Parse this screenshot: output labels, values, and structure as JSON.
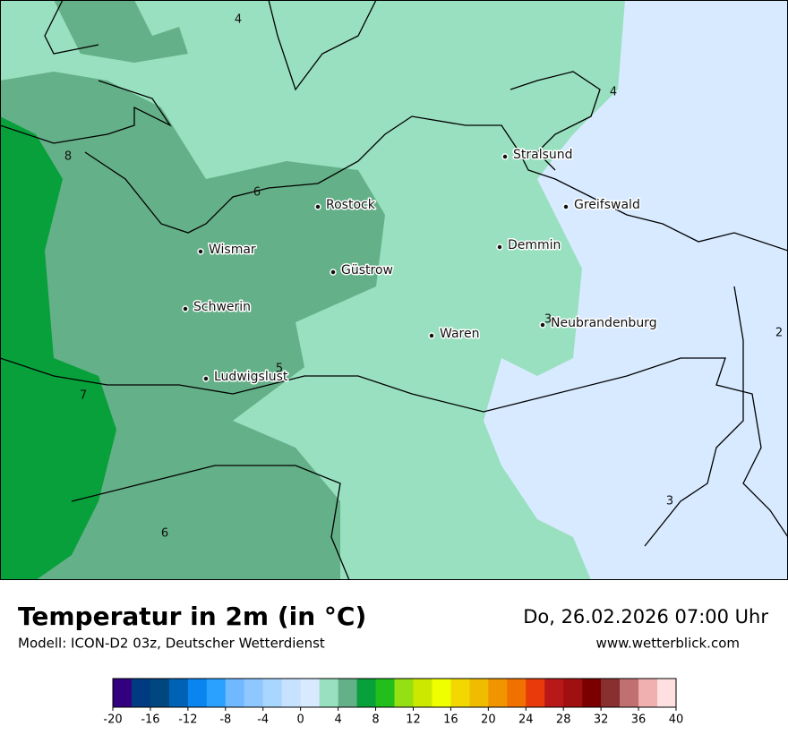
{
  "header": {
    "title": "Temperatur in 2m (in °C)",
    "subtitle": "Modell: ICON-D2 03z, Deutscher Wetterdienst",
    "date": "Do, 26.02.2026 07:00 Uhr",
    "url": "www.wetterblick.com"
  },
  "map": {
    "cities": [
      "Stralsund",
      "Greifswald",
      "Rostock",
      "Demmin",
      "Wismar",
      "Güstrow",
      "Schwerin",
      "Neubrandenburg",
      "Waren",
      "Ludwigslust"
    ],
    "contour_labels": [
      4,
      4,
      8,
      6,
      3,
      2,
      5,
      7,
      6,
      3
    ]
  },
  "colorbar": {
    "lim": [
      -20,
      40
    ],
    "ticks": [
      -20,
      -16,
      -12,
      -8,
      -4,
      0,
      4,
      8,
      12,
      16,
      20,
      24,
      28,
      32,
      36,
      40
    ],
    "colors": [
      "#32007f",
      "#003a80",
      "#00467f",
      "#0062b4",
      "#0a84ee",
      "#2aa0ff",
      "#70b8ff",
      "#8ec8ff",
      "#a8d6ff",
      "#c6e2ff",
      "#d8eaff",
      "#98e0bf",
      "#64b088",
      "#07a03a",
      "#21be1c",
      "#95e012",
      "#cce800",
      "#f0ff00",
      "#f2d800",
      "#f0bc00",
      "#f09400",
      "#f07000",
      "#e83a0a",
      "#b81818",
      "#a01010",
      "#7a0000",
      "#883030",
      "#c07070",
      "#f0b0b0",
      "#ffe0e0"
    ]
  }
}
